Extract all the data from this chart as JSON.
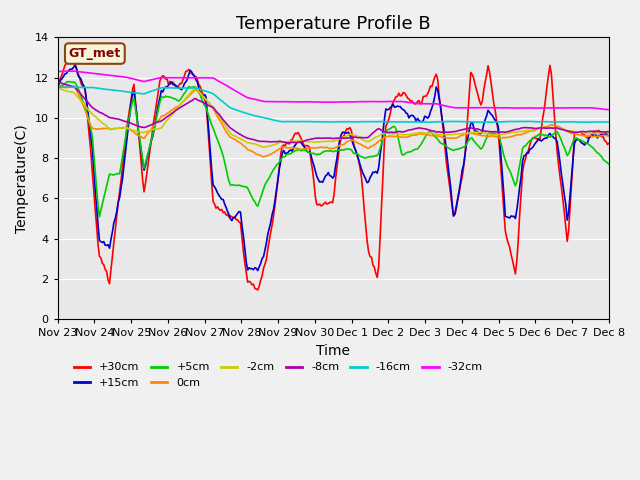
{
  "title": "Temperature Profile B",
  "xlabel": "Time",
  "ylabel": "Temperature(C)",
  "ylim": [
    0,
    14
  ],
  "yticks": [
    0,
    2,
    4,
    6,
    8,
    10,
    12,
    14
  ],
  "background_color": "#f0f0f0",
  "plot_bg_color": "#e8e8e8",
  "title_fontsize": 13,
  "axis_fontsize": 10,
  "legend_label": "GT_met",
  "n_days": 16,
  "series": {
    "+30cm": {
      "color": "#ff0000",
      "lw": 1.2
    },
    "+15cm": {
      "color": "#0000cc",
      "lw": 1.2
    },
    "+5cm": {
      "color": "#00cc00",
      "lw": 1.2
    },
    "0cm": {
      "color": "#ff8800",
      "lw": 1.2
    },
    "-2cm": {
      "color": "#cccc00",
      "lw": 1.2
    },
    "-8cm": {
      "color": "#aa00aa",
      "lw": 1.2
    },
    "-16cm": {
      "color": "#00cccc",
      "lw": 1.2
    },
    "-32cm": {
      "color": "#ff00ff",
      "lw": 1.2
    }
  },
  "xtick_labels": [
    "Nov 23",
    "Nov 24",
    "Nov 25",
    "Nov 26",
    "Nov 27",
    "Nov 28",
    "Nov 29",
    "Nov 30",
    "Dec 1",
    "Dec 2",
    "Dec 3",
    "Dec 4",
    "Dec 5",
    "Dec 6",
    "Dec 7",
    "Dec 8"
  ],
  "grid_color": "#ffffff",
  "grid_lw": 0.8
}
